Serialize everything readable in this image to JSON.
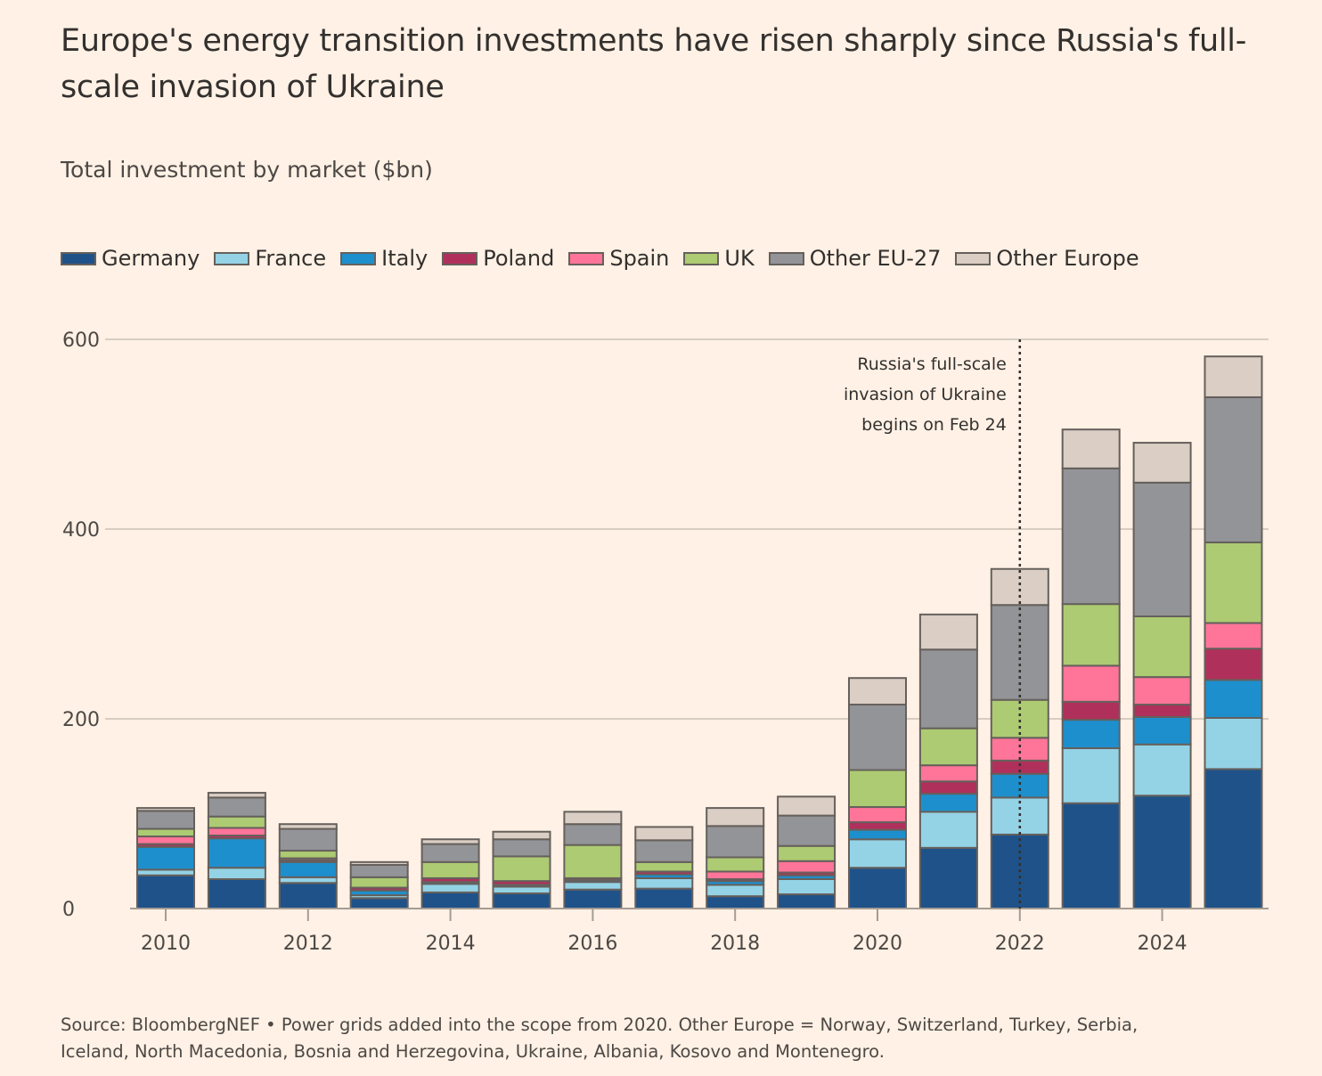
{
  "chart_data": {
    "type": "bar",
    "stacked": true,
    "title": "Europe's energy transition investments have risen sharply since Russia's full-scale invasion of Ukraine",
    "subtitle": "Total investment by market ($bn)",
    "xlabel": "",
    "ylabel": "",
    "ylim": [
      0,
      600
    ],
    "yticks": [
      0,
      200,
      400,
      600
    ],
    "grid": true,
    "legend_position": "top-left",
    "categories": [
      "2010",
      "2011",
      "2012",
      "2013",
      "2014",
      "2015",
      "2016",
      "2017",
      "2018",
      "2019",
      "2020",
      "2021",
      "2022",
      "2023",
      "2024",
      "2025"
    ],
    "xtick_labels": [
      "2010",
      "2012",
      "2014",
      "2016",
      "2018",
      "2020",
      "2022",
      "2024"
    ],
    "series": [
      {
        "name": "Germany",
        "color": "#1f5289",
        "values": [
          35,
          31,
          27,
          11,
          17,
          16,
          20,
          21,
          13,
          15,
          43,
          64,
          78,
          111,
          119,
          147
        ]
      },
      {
        "name": "France",
        "color": "#94d3e6",
        "values": [
          6,
          12,
          6,
          3,
          9,
          7,
          8,
          11,
          12,
          16,
          30,
          38,
          39,
          58,
          54,
          54
        ]
      },
      {
        "name": "Italy",
        "color": "#1e8fcd",
        "values": [
          24,
          31,
          16,
          5,
          2,
          2,
          2,
          4,
          4,
          4,
          10,
          19,
          25,
          30,
          29,
          40
        ]
      },
      {
        "name": "Poland",
        "color": "#b0305c",
        "values": [
          3,
          3,
          2,
          3,
          4,
          4,
          2,
          3,
          2,
          3,
          8,
          13,
          14,
          19,
          13,
          33
        ]
      },
      {
        "name": "Spain",
        "color": "#ff7599",
        "values": [
          8,
          8,
          2,
          0,
          0,
          0,
          0,
          0,
          8,
          12,
          16,
          17,
          24,
          38,
          29,
          27
        ]
      },
      {
        "name": "UK",
        "color": "#adcb72",
        "values": [
          8,
          12,
          8,
          11,
          17,
          26,
          35,
          10,
          15,
          16,
          39,
          39,
          40,
          65,
          64,
          85
        ]
      },
      {
        "name": "Other EU-27",
        "color": "#939497",
        "values": [
          19,
          20,
          23,
          13,
          19,
          18,
          22,
          23,
          33,
          32,
          69,
          83,
          100,
          143,
          141,
          153
        ]
      },
      {
        "name": "Other Europe",
        "color": "#dacec5",
        "values": [
          3,
          5,
          5,
          3,
          5,
          8,
          13,
          14,
          19,
          20,
          28,
          37,
          38,
          41,
          42,
          43
        ]
      }
    ],
    "annotations": [
      {
        "at": "2022",
        "style": "dotted-vertical-line",
        "lines": [
          "Russia's full-scale",
          "invasion of Ukraine",
          "begins on Feb 24"
        ]
      }
    ]
  },
  "source": {
    "line1": "Source: BloombergNEF • Power grids added into the scope from 2020. Other Europe = Norway, Switzerland, Turkey, Serbia,",
    "line2": "Iceland, North Macedonia, Bosnia and Herzegovina, Ukraine, Albania, Kosovo and Montenegro."
  }
}
